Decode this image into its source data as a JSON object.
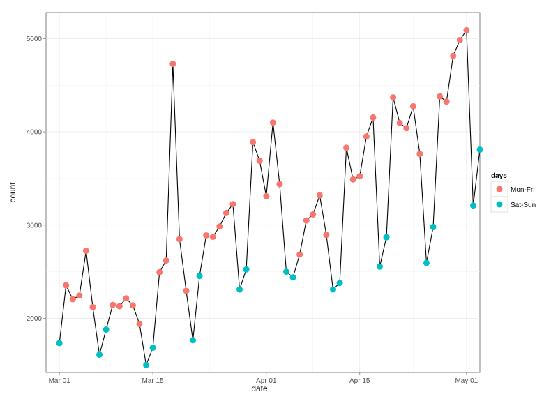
{
  "chart_data": {
    "type": "line",
    "xlabel": "date",
    "ylabel": "count",
    "x_axis": {
      "scale": "date",
      "range": [
        "2013-02-27",
        "2013-05-03"
      ],
      "ticks": [
        {
          "date": "2013-03-01",
          "label": "Mar 01"
        },
        {
          "date": "2013-03-15",
          "label": "Mar 15"
        },
        {
          "date": "2013-04-01",
          "label": "Apr 01"
        },
        {
          "date": "2013-04-15",
          "label": "Apr 15"
        },
        {
          "date": "2013-05-01",
          "label": "May 01"
        }
      ]
    },
    "y_axis": {
      "range": [
        1420,
        5280
      ],
      "ticks": [
        2000,
        3000,
        4000,
        5000
      ]
    },
    "grid": true,
    "legend": {
      "title": "days",
      "position": "right",
      "entries": [
        {
          "name": "Mon-Fri",
          "color": "#F8766D"
        },
        {
          "name": "Sat-Sun",
          "color": "#00BFC4"
        }
      ]
    },
    "line_color": "#000000",
    "points": [
      {
        "date": "2013-03-01",
        "count": 1735,
        "days": "Sat-Sun"
      },
      {
        "date": "2013-03-02",
        "count": 2355,
        "days": "Mon-Fri"
      },
      {
        "date": "2013-03-03",
        "count": 2205,
        "days": "Mon-Fri"
      },
      {
        "date": "2013-03-04",
        "count": 2245,
        "days": "Mon-Fri"
      },
      {
        "date": "2013-03-05",
        "count": 2725,
        "days": "Mon-Fri"
      },
      {
        "date": "2013-03-06",
        "count": 2120,
        "days": "Mon-Fri"
      },
      {
        "date": "2013-03-07",
        "count": 1610,
        "days": "Sat-Sun"
      },
      {
        "date": "2013-03-08",
        "count": 1880,
        "days": "Sat-Sun"
      },
      {
        "date": "2013-03-09",
        "count": 2145,
        "days": "Mon-Fri"
      },
      {
        "date": "2013-03-10",
        "count": 2130,
        "days": "Mon-Fri"
      },
      {
        "date": "2013-03-11",
        "count": 2215,
        "days": "Mon-Fri"
      },
      {
        "date": "2013-03-12",
        "count": 2140,
        "days": "Mon-Fri"
      },
      {
        "date": "2013-03-13",
        "count": 1940,
        "days": "Mon-Fri"
      },
      {
        "date": "2013-03-14",
        "count": 1500,
        "days": "Sat-Sun"
      },
      {
        "date": "2013-03-15",
        "count": 1685,
        "days": "Sat-Sun"
      },
      {
        "date": "2013-03-16",
        "count": 2495,
        "days": "Mon-Fri"
      },
      {
        "date": "2013-03-17",
        "count": 2620,
        "days": "Mon-Fri"
      },
      {
        "date": "2013-03-18",
        "count": 4730,
        "days": "Mon-Fri"
      },
      {
        "date": "2013-03-19",
        "count": 2850,
        "days": "Mon-Fri"
      },
      {
        "date": "2013-03-20",
        "count": 2295,
        "days": "Mon-Fri"
      },
      {
        "date": "2013-03-21",
        "count": 1765,
        "days": "Sat-Sun"
      },
      {
        "date": "2013-03-22",
        "count": 2455,
        "days": "Sat-Sun"
      },
      {
        "date": "2013-03-23",
        "count": 2890,
        "days": "Mon-Fri"
      },
      {
        "date": "2013-03-24",
        "count": 2875,
        "days": "Mon-Fri"
      },
      {
        "date": "2013-03-25",
        "count": 2985,
        "days": "Mon-Fri"
      },
      {
        "date": "2013-03-26",
        "count": 3130,
        "days": "Mon-Fri"
      },
      {
        "date": "2013-03-27",
        "count": 3225,
        "days": "Mon-Fri"
      },
      {
        "date": "2013-03-28",
        "count": 2310,
        "days": "Sat-Sun"
      },
      {
        "date": "2013-03-29",
        "count": 2525,
        "days": "Sat-Sun"
      },
      {
        "date": "2013-03-30",
        "count": 3890,
        "days": "Mon-Fri"
      },
      {
        "date": "2013-03-31",
        "count": 3690,
        "days": "Mon-Fri"
      },
      {
        "date": "2013-04-01",
        "count": 3310,
        "days": "Mon-Fri"
      },
      {
        "date": "2013-04-02",
        "count": 4100,
        "days": "Mon-Fri"
      },
      {
        "date": "2013-04-03",
        "count": 3440,
        "days": "Mon-Fri"
      },
      {
        "date": "2013-04-04",
        "count": 2500,
        "days": "Sat-Sun"
      },
      {
        "date": "2013-04-05",
        "count": 2440,
        "days": "Sat-Sun"
      },
      {
        "date": "2013-04-06",
        "count": 2685,
        "days": "Mon-Fri"
      },
      {
        "date": "2013-04-07",
        "count": 3050,
        "days": "Mon-Fri"
      },
      {
        "date": "2013-04-08",
        "count": 3115,
        "days": "Mon-Fri"
      },
      {
        "date": "2013-04-09",
        "count": 3320,
        "days": "Mon-Fri"
      },
      {
        "date": "2013-04-10",
        "count": 2895,
        "days": "Mon-Fri"
      },
      {
        "date": "2013-04-11",
        "count": 2310,
        "days": "Sat-Sun"
      },
      {
        "date": "2013-04-12",
        "count": 2380,
        "days": "Sat-Sun"
      },
      {
        "date": "2013-04-13",
        "count": 3830,
        "days": "Mon-Fri"
      },
      {
        "date": "2013-04-14",
        "count": 3490,
        "days": "Mon-Fri"
      },
      {
        "date": "2013-04-15",
        "count": 3525,
        "days": "Mon-Fri"
      },
      {
        "date": "2013-04-16",
        "count": 3950,
        "days": "Mon-Fri"
      },
      {
        "date": "2013-04-17",
        "count": 4155,
        "days": "Mon-Fri"
      },
      {
        "date": "2013-04-18",
        "count": 2555,
        "days": "Sat-Sun"
      },
      {
        "date": "2013-04-19",
        "count": 2870,
        "days": "Sat-Sun"
      },
      {
        "date": "2013-04-20",
        "count": 4370,
        "days": "Mon-Fri"
      },
      {
        "date": "2013-04-21",
        "count": 4095,
        "days": "Mon-Fri"
      },
      {
        "date": "2013-04-22",
        "count": 4040,
        "days": "Mon-Fri"
      },
      {
        "date": "2013-04-23",
        "count": 4275,
        "days": "Mon-Fri"
      },
      {
        "date": "2013-04-24",
        "count": 3765,
        "days": "Mon-Fri"
      },
      {
        "date": "2013-04-25",
        "count": 2595,
        "days": "Sat-Sun"
      },
      {
        "date": "2013-04-26",
        "count": 2980,
        "days": "Sat-Sun"
      },
      {
        "date": "2013-04-27",
        "count": 4380,
        "days": "Mon-Fri"
      },
      {
        "date": "2013-04-28",
        "count": 4325,
        "days": "Mon-Fri"
      },
      {
        "date": "2013-04-29",
        "count": 4815,
        "days": "Mon-Fri"
      },
      {
        "date": "2013-04-30",
        "count": 4985,
        "days": "Mon-Fri"
      },
      {
        "date": "2013-05-01",
        "count": 5090,
        "days": "Mon-Fri"
      },
      {
        "date": "2013-05-02",
        "count": 3210,
        "days": "Sat-Sun"
      },
      {
        "date": "2013-05-03",
        "count": 3810,
        "days": "Sat-Sun"
      }
    ]
  }
}
